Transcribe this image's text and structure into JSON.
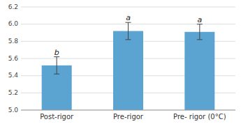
{
  "chart_data": {
    "type": "bar",
    "categories": [
      "Post-rigor",
      "Pre-rigor",
      "Pre- rigor (0°C)"
    ],
    "values": [
      5.52,
      5.92,
      5.91
    ],
    "errors": [
      0.1,
      0.1,
      0.09
    ],
    "annotations": [
      "b",
      "a",
      "a"
    ],
    "color": "#5ba3d0",
    "ylim": [
      5.0,
      6.2
    ],
    "yticks": [
      {
        "value": 5.0,
        "label": "5.0"
      },
      5.2,
      5.4,
      5.6,
      5.8,
      {
        "value": 6.0,
        "label": "6.0"
      },
      6.2
    ],
    "grid": true
  }
}
